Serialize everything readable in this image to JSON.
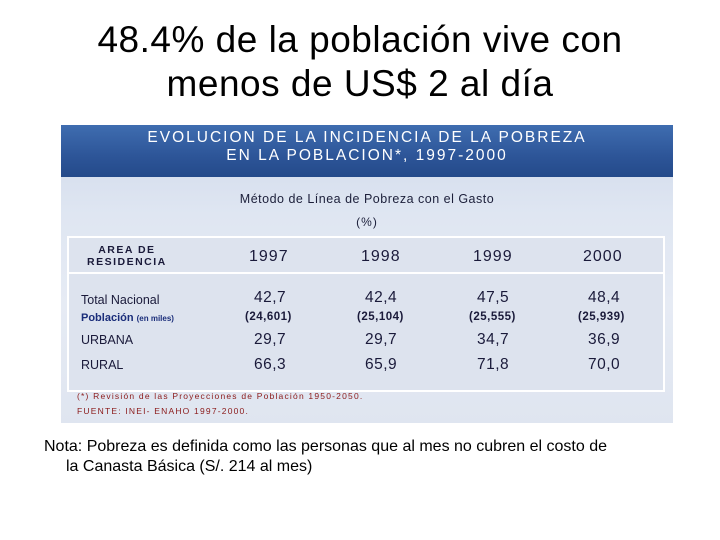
{
  "title": {
    "line1": "48.4% de la población vive con",
    "line2": "menos de US$ 2 al día"
  },
  "figure": {
    "banner_line1": "EVOLUCION DE LA INCIDENCIA DE LA POBREZA",
    "banner_line2": "EN LA POBLACION*, 1997-2000",
    "subtitle": "Método de Línea de Pobreza con el Gasto",
    "unit": "(%)",
    "table": {
      "area_header_line1": "AREA DE",
      "area_header_line2": "RESIDENCIA",
      "years": [
        "1997",
        "1998",
        "1999",
        "2000"
      ],
      "rows": [
        {
          "label": "Total Nacional",
          "values": [
            "42,7",
            "42,4",
            "47,5",
            "48,4"
          ]
        },
        {
          "label": "Población",
          "label_sub": "(en miles)",
          "values": [
            "(24,601)",
            "(25,104)",
            "(25,555)",
            "(25,939)"
          ]
        },
        {
          "label": "URBANA",
          "values": [
            "29,7",
            "29,7",
            "34,7",
            "36,9"
          ]
        },
        {
          "label": "RURAL",
          "values": [
            "66,3",
            "65,9",
            "71,8",
            "70,0"
          ]
        }
      ]
    },
    "footnote1": "(*) Revisión de las Proyecciones de Población 1950-2050.",
    "footnote2": "FUENTE: INEI- ENAHO 1997-2000."
  },
  "note": {
    "line1": "Nota: Pobreza es definida como las personas que al mes no cubren el costo de",
    "line2": "la Canasta Básica (S/. 214 al mes)"
  },
  "colors": {
    "banner": "#2d5598",
    "panel": "#dde3ee",
    "footnote": "#8b1a1a",
    "population_label": "#1a2d7a"
  }
}
